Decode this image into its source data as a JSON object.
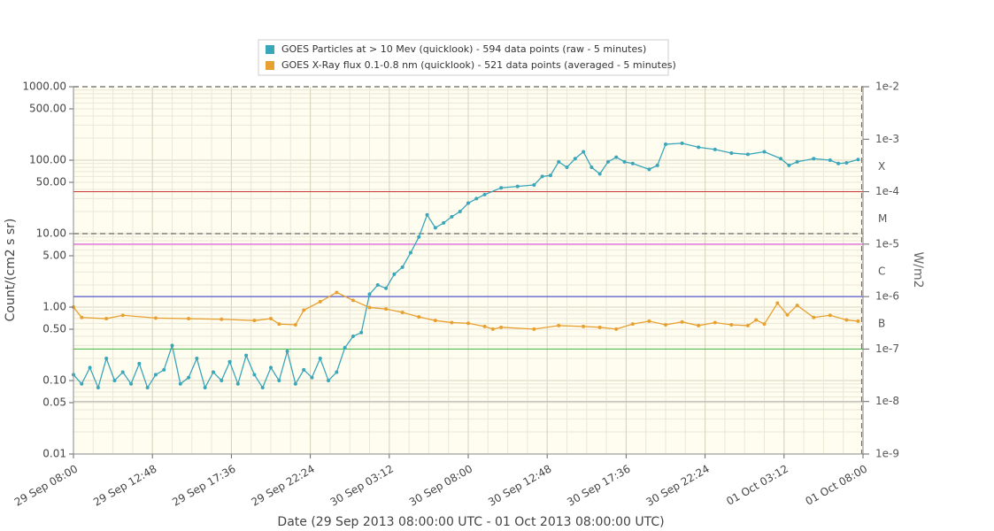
{
  "chart_data": {
    "type": "line",
    "xlabel": "Date (29 Sep 2013 08:00:00 UTC - 01 Oct 2013 08:00:00 UTC)",
    "ylabel": "Count/(cm2 s sr)",
    "y2label": "W/m2",
    "xlim": [
      "2013-09-29 08:00",
      "2013-10-01 08:00"
    ],
    "xticks": [
      {
        "value": "2013-09-29 08:00",
        "label": "29 Sep 08:00"
      },
      {
        "value": "2013-09-29 12:48",
        "label": "29 Sep 12:48"
      },
      {
        "value": "2013-09-29 17:36",
        "label": "29 Sep 17:36"
      },
      {
        "value": "2013-09-29 22:24",
        "label": "29 Sep 22:24"
      },
      {
        "value": "2013-09-30 03:12",
        "label": "30 Sep 03:12"
      },
      {
        "value": "2013-09-30 08:00",
        "label": "30 Sep 08:00"
      },
      {
        "value": "2013-09-30 12:48",
        "label": "30 Sep 12:48"
      },
      {
        "value": "2013-09-30 17:36",
        "label": "30 Sep 17:36"
      },
      {
        "value": "2013-09-30 22:24",
        "label": "30 Sep 22:24"
      },
      {
        "value": "2013-10-01 03:12",
        "label": "01 Oct 03:12"
      },
      {
        "value": "2013-10-01 08:00",
        "label": "01 Oct 08:00"
      }
    ],
    "ylim": [
      0.01,
      1000
    ],
    "yscale": "log",
    "yticks": [
      0.01,
      0.05,
      {
        "value": 0.1,
        "label": "0.10"
      },
      {
        "value": 0.5,
        "label": "0.50"
      },
      {
        "value": 1,
        "label": "1.00"
      },
      {
        "value": 5,
        "label": "5.00"
      },
      {
        "value": 10,
        "label": "10.00"
      },
      {
        "value": 50,
        "label": "50.00"
      },
      {
        "value": 100,
        "label": "100.00"
      },
      {
        "value": 500,
        "label": "500.00"
      },
      {
        "value": 1000,
        "label": "1000.00"
      }
    ],
    "y2lim": [
      1e-09,
      0.01
    ],
    "y2scale": "log",
    "y2ticks": [
      {
        "value": 0.01,
        "label": "1e-2"
      },
      {
        "value": 0.001,
        "label": "1e-3"
      },
      {
        "value": 0.0001,
        "label": "1e-4"
      },
      {
        "value": 1e-05,
        "label": "1e-5"
      },
      {
        "value": 1e-06,
        "label": "1e-6"
      },
      {
        "value": 1e-07,
        "label": "1e-7"
      },
      {
        "value": 1e-08,
        "label": "1e-8"
      },
      {
        "value": 1e-09,
        "label": "1e-9"
      }
    ],
    "class_labels": [
      {
        "value": 0.0003,
        "label": "X"
      },
      {
        "value": 3e-05,
        "label": "M"
      },
      {
        "value": 3e-06,
        "label": "C"
      },
      {
        "value": 3e-07,
        "label": "B"
      }
    ],
    "y2_thresholds": [
      {
        "value": 0.0001,
        "color": "#cc4444"
      },
      {
        "value": 1e-05,
        "color": "#e066e0"
      },
      {
        "value": 1e-06,
        "color": "#5555cc"
      },
      {
        "value": 1e-07,
        "color": "#55bb55"
      },
      {
        "value": 1e-08,
        "color": "#bbbbbb"
      }
    ],
    "y_dashed": [
      10,
      1000
    ],
    "time_marker": "2013-10-01 07:55",
    "grid": true,
    "legend": "top",
    "series": [
      {
        "name": "GOES Particles at > 10 Mev (quicklook) - 594 data points (raw - 5 minutes)",
        "color": "#3aa6b9",
        "axis": "y",
        "x": [
          "2013-09-29 08:00",
          "2013-09-29 08:30",
          "2013-09-29 09:00",
          "2013-09-29 09:30",
          "2013-09-29 10:00",
          "2013-09-29 10:30",
          "2013-09-29 11:00",
          "2013-09-29 11:30",
          "2013-09-29 12:00",
          "2013-09-29 12:30",
          "2013-09-29 13:00",
          "2013-09-29 13:30",
          "2013-09-29 14:00",
          "2013-09-29 14:30",
          "2013-09-29 15:00",
          "2013-09-29 15:30",
          "2013-09-29 16:00",
          "2013-09-29 16:30",
          "2013-09-29 17:00",
          "2013-09-29 17:30",
          "2013-09-29 18:00",
          "2013-09-29 18:30",
          "2013-09-29 19:00",
          "2013-09-29 19:30",
          "2013-09-29 20:00",
          "2013-09-29 20:30",
          "2013-09-29 21:00",
          "2013-09-29 21:30",
          "2013-09-29 22:00",
          "2013-09-29 22:30",
          "2013-09-29 23:00",
          "2013-09-29 23:30",
          "2013-09-30 00:00",
          "2013-09-30 00:30",
          "2013-09-30 01:00",
          "2013-09-30 01:30",
          "2013-09-30 02:00",
          "2013-09-30 02:30",
          "2013-09-30 03:00",
          "2013-09-30 03:30",
          "2013-09-30 04:00",
          "2013-09-30 04:30",
          "2013-09-30 05:00",
          "2013-09-30 05:30",
          "2013-09-30 06:00",
          "2013-09-30 06:30",
          "2013-09-30 07:00",
          "2013-09-30 07:30",
          "2013-09-30 08:00",
          "2013-09-30 08:30",
          "2013-09-30 09:00",
          "2013-09-30 10:00",
          "2013-09-30 11:00",
          "2013-09-30 12:00",
          "2013-09-30 12:30",
          "2013-09-30 13:00",
          "2013-09-30 13:30",
          "2013-09-30 14:00",
          "2013-09-30 14:30",
          "2013-09-30 15:00",
          "2013-09-30 15:30",
          "2013-09-30 16:00",
          "2013-09-30 16:30",
          "2013-09-30 17:00",
          "2013-09-30 17:30",
          "2013-09-30 18:00",
          "2013-09-30 19:00",
          "2013-09-30 19:30",
          "2013-09-30 20:00",
          "2013-09-30 21:00",
          "2013-09-30 22:00",
          "2013-09-30 23:00",
          "2013-10-01 00:00",
          "2013-10-01 01:00",
          "2013-10-01 02:00",
          "2013-10-01 03:00",
          "2013-10-01 03:30",
          "2013-10-01 04:00",
          "2013-10-01 05:00",
          "2013-10-01 06:00",
          "2013-10-01 06:30",
          "2013-10-01 07:00",
          "2013-10-01 07:42"
        ],
        "values": [
          0.12,
          0.09,
          0.15,
          0.08,
          0.2,
          0.1,
          0.13,
          0.09,
          0.17,
          0.08,
          0.12,
          0.14,
          0.3,
          0.09,
          0.11,
          0.2,
          0.08,
          0.13,
          0.1,
          0.18,
          0.09,
          0.22,
          0.12,
          0.08,
          0.15,
          0.1,
          0.25,
          0.09,
          0.14,
          0.11,
          0.2,
          0.1,
          0.13,
          0.28,
          0.4,
          0.45,
          1.5,
          2.0,
          1.8,
          2.8,
          3.5,
          5.5,
          9,
          18,
          12,
          14,
          17,
          20,
          26,
          30,
          34,
          42,
          44,
          46,
          60,
          62,
          95,
          80,
          105,
          130,
          80,
          65,
          95,
          110,
          95,
          90,
          75,
          85,
          165,
          170,
          150,
          140,
          125,
          120,
          130,
          105,
          85,
          95,
          105,
          100,
          90,
          92,
          102
        ]
      },
      {
        "name": "GOES X-Ray flux 0.1-0.8 nm (quicklook) - 521 data points (averaged - 5 minutes)",
        "color": "#e8a030",
        "axis": "y2",
        "x": [
          "2013-09-29 08:00",
          "2013-09-29 08:30",
          "2013-09-29 10:00",
          "2013-09-29 11:00",
          "2013-09-29 13:00",
          "2013-09-29 15:00",
          "2013-09-29 17:00",
          "2013-09-29 19:00",
          "2013-09-29 20:00",
          "2013-09-29 20:30",
          "2013-09-29 21:30",
          "2013-09-29 22:00",
          "2013-09-29 23:00",
          "2013-09-30 00:00",
          "2013-09-30 01:00",
          "2013-09-30 02:00",
          "2013-09-30 03:00",
          "2013-09-30 04:00",
          "2013-09-30 05:00",
          "2013-09-30 06:00",
          "2013-09-30 07:00",
          "2013-09-30 08:00",
          "2013-09-30 09:00",
          "2013-09-30 09:30",
          "2013-09-30 10:00",
          "2013-09-30 12:00",
          "2013-09-30 13:30",
          "2013-09-30 15:00",
          "2013-09-30 16:00",
          "2013-09-30 17:00",
          "2013-09-30 18:00",
          "2013-09-30 19:00",
          "2013-09-30 20:00",
          "2013-09-30 21:00",
          "2013-09-30 22:00",
          "2013-09-30 23:00",
          "2013-10-01 00:00",
          "2013-10-01 01:00",
          "2013-10-01 01:30",
          "2013-10-01 02:00",
          "2013-10-01 02:48",
          "2013-10-01 03:24",
          "2013-10-01 04:00",
          "2013-10-01 05:00",
          "2013-10-01 06:00",
          "2013-10-01 07:00",
          "2013-10-01 07:42"
        ],
        "values": [
          6.3e-07,
          4e-07,
          3.8e-07,
          4.4e-07,
          3.9e-07,
          3.8e-07,
          3.7e-07,
          3.5e-07,
          3.8e-07,
          3e-07,
          2.9e-07,
          5.5e-07,
          8e-07,
          1.2e-06,
          8.5e-07,
          6.2e-07,
          5.8e-07,
          5e-07,
          4.1e-07,
          3.5e-07,
          3.2e-07,
          3.1e-07,
          2.7e-07,
          2.4e-07,
          2.6e-07,
          2.4e-07,
          2.8e-07,
          2.7e-07,
          2.6e-07,
          2.4e-07,
          3e-07,
          3.4e-07,
          2.9e-07,
          3.3e-07,
          2.8e-07,
          3.2e-07,
          2.9e-07,
          2.8e-07,
          3.6e-07,
          3e-07,
          7.5e-07,
          4.5e-07,
          6.8e-07,
          4e-07,
          4.4e-07,
          3.6e-07,
          3.4e-07
        ]
      }
    ]
  }
}
